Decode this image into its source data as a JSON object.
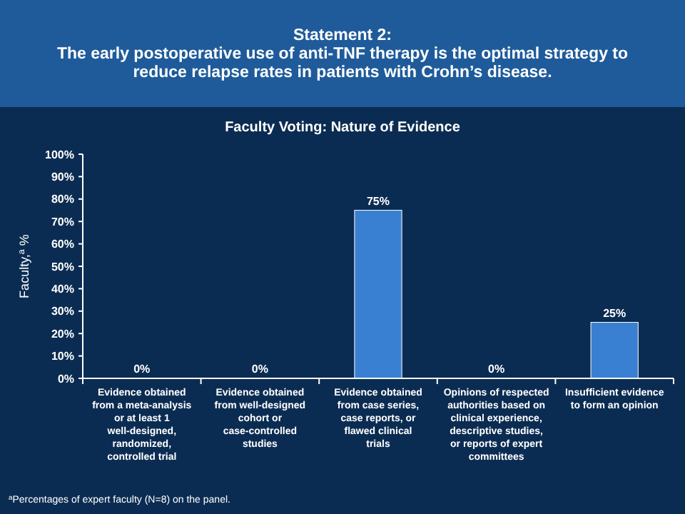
{
  "chart_data": {
    "type": "bar",
    "title": "Statement 2:\nThe early postoperative use of anti-TNF  therapy is the optimal strategy to\nreduce relapse rates in patients with Crohn’s disease.",
    "subtitle": "Faculty Voting: Nature of Evidence",
    "ylabel": "Faculty,$^{a}$ %",
    "categories": [
      "Evidence obtained from a meta-analysis or at least 1 well-designed, randomized, controlled trial",
      "Evidence obtained from well-designed cohort or case-controlled studies",
      "Evidence obtained from case series, case reports, or flawed clinical trials",
      "Opinions of respected authorities based on clinical experience, descriptive studies, or reports of expert committees",
      "Insufficient evidence to form an opinion"
    ],
    "values": [
      0,
      0,
      75,
      0,
      25
    ],
    "color": "#3a80d2",
    "data_labels": true,
    "value_labels": [
      "0%",
      "0%",
      "75%",
      "0%",
      "25%"
    ],
    "ylim": [
      0,
      100
    ],
    "yticks": [
      {
        "value": 0,
        "label": "0%"
      },
      {
        "value": 10,
        "label": "10%"
      },
      {
        "value": 20,
        "label": "20%"
      },
      {
        "value": 30,
        "label": "30%"
      },
      {
        "value": 40,
        "label": "40%"
      },
      {
        "value": 50,
        "label": "50%"
      },
      {
        "value": 60,
        "label": "60%"
      },
      {
        "value": 70,
        "label": "70%"
      },
      {
        "value": 80,
        "label": "80%"
      },
      {
        "value": 90,
        "label": "90%"
      },
      {
        "value": 100,
        "label": "100%"
      }
    ],
    "grid": false,
    "annotations": [
      "$^{a}$Percentages of expert faculty (N=8) on the panel."
    ]
  }
}
